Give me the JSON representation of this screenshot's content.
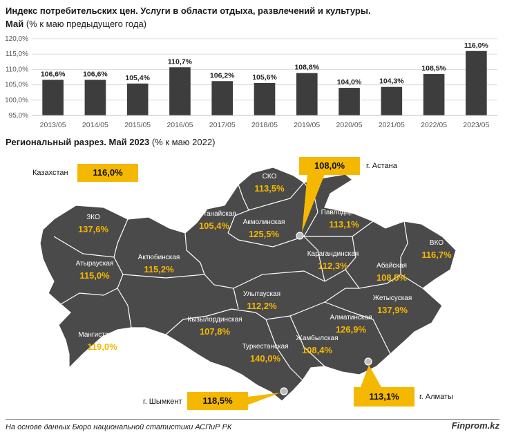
{
  "header": {
    "title": "Индекс потребительских цен. Услуги в области отдыха, развлечений и культуры.",
    "subtitle_bold": "Май",
    "subtitle_rest": "(% к маю предыдущего года)"
  },
  "chart_data": {
    "type": "bar",
    "categories": [
      "2013/05",
      "2014/05",
      "2015/05",
      "2016/05",
      "2017/05",
      "2018/05",
      "2019/05",
      "2020/05",
      "2021/05",
      "2022/05",
      "2023/05"
    ],
    "values": [
      106.6,
      106.6,
      105.4,
      110.7,
      106.2,
      105.6,
      108.8,
      104.0,
      104.3,
      108.5,
      116.0
    ],
    "value_labels": [
      "106,6%",
      "106,6%",
      "105,4%",
      "110,7%",
      "106,2%",
      "105,6%",
      "108,8%",
      "104,0%",
      "104,3%",
      "108,5%",
      "116,0%"
    ],
    "y_ticks": [
      "95,0%",
      "100,0%",
      "105,0%",
      "110,0%",
      "115,0%",
      "120,0%"
    ],
    "ylim": [
      95,
      120
    ],
    "grid": true,
    "bar_color": "#3d3d3d"
  },
  "regional": {
    "title_bold": "Региональный разрез. Май 2023",
    "title_rest": "(% к маю 2022)",
    "kazakhstan_label": "Казахстан",
    "kazakhstan_value": "116,0%",
    "astana_label": "г. Астана",
    "astana_value": "108,0%",
    "shymkent_label": "г. Шымкент",
    "shymkent_value": "118,5%",
    "almaty_label": "г. Алматы",
    "almaty_value": "113,1%",
    "regions": [
      {
        "name": "ЗКО",
        "value": "137,6%"
      },
      {
        "name": "Атырауская",
        "value": "115,0%"
      },
      {
        "name": "Актюбинская",
        "value": "115,2%"
      },
      {
        "name": "Мангистауская",
        "value": "119,0%"
      },
      {
        "name": "Костанайская",
        "value": "105,4%"
      },
      {
        "name": "СКО",
        "value": "113,5%"
      },
      {
        "name": "Акмолинская",
        "value": "125,5%"
      },
      {
        "name": "Павлодарская",
        "value": "113,1%"
      },
      {
        "name": "Карагандинская",
        "value": "112,3%"
      },
      {
        "name": "ВКО",
        "value": "116,7%"
      },
      {
        "name": "Абайская",
        "value": "108,5%"
      },
      {
        "name": "Улытауская",
        "value": "112,2%"
      },
      {
        "name": "Кызылординская",
        "value": "107,8%"
      },
      {
        "name": "Жетысуская",
        "value": "137,9%"
      },
      {
        "name": "Алматинская",
        "value": "126,9%"
      },
      {
        "name": "Жамбылская",
        "value": "108,4%"
      },
      {
        "name": "Туркестанская",
        "value": "140,0%"
      }
    ],
    "map_color": "#4a4a4a",
    "value_color": "#f5b800",
    "accent_color": "#f5b800"
  },
  "footer": {
    "source": "На основе данных Бюро национальной статистики АСПиР РК",
    "brand": "Finprom.kz"
  }
}
